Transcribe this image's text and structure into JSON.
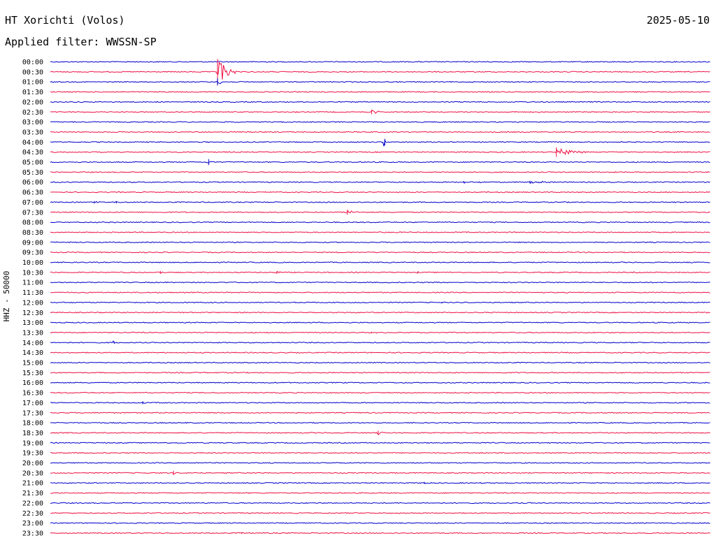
{
  "header": {
    "station": "HT Xorichti (Volos)",
    "date": "2025-05-10",
    "filter": "Applied filter: WWSSN-SP"
  },
  "chart_data": {
    "type": "line",
    "title": "HT Xorichti (Volos)",
    "subtitle": "Applied filter: WWSSN-SP",
    "ylabel": "HHZ - 50000",
    "xlabel": "",
    "grid": false,
    "trace_colors": [
      "#0000cc",
      "#ee1144"
    ],
    "row_labels": [
      "00:00",
      "00:30",
      "01:00",
      "01:30",
      "02:00",
      "02:30",
      "03:00",
      "03:30",
      "04:00",
      "04:30",
      "05:00",
      "05:30",
      "06:00",
      "06:30",
      "07:00",
      "07:30",
      "08:00",
      "08:30",
      "09:00",
      "09:30",
      "10:00",
      "10:30",
      "11:00",
      "11:30",
      "12:00",
      "12:30",
      "13:00",
      "13:30",
      "14:00",
      "14:30",
      "15:00",
      "15:30",
      "16:00",
      "16:30",
      "17:00",
      "17:30",
      "18:00",
      "18:30",
      "19:00",
      "19:30",
      "20:00",
      "20:30",
      "21:00",
      "21:30",
      "22:00",
      "22:30",
      "23:00",
      "23:30"
    ],
    "events": [
      {
        "row": "00:30",
        "minute": 7.6,
        "amplitude": 3.5,
        "duration_min": 1.0
      },
      {
        "row": "01:00",
        "minute": 7.6,
        "amplitude": 1.0,
        "duration_min": 0.3
      },
      {
        "row": "02:30",
        "minute": 14.6,
        "amplitude": 0.6,
        "duration_min": 0.6
      },
      {
        "row": "04:00",
        "minute": 15.2,
        "amplitude": 0.9,
        "duration_min": 0.1
      },
      {
        "row": "04:30",
        "minute": 23.0,
        "amplitude": 1.3,
        "duration_min": 1.5
      },
      {
        "row": "05:00",
        "minute": 7.2,
        "amplitude": 0.8,
        "duration_min": 0.3
      },
      {
        "row": "06:00",
        "minute": 18.8,
        "amplitude": 0.3,
        "duration_min": 1.3
      },
      {
        "row": "06:00",
        "minute": 21.8,
        "amplitude": 0.4,
        "duration_min": 1.3
      },
      {
        "row": "07:00",
        "minute": 2.0,
        "amplitude": 0.3,
        "duration_min": 0.3
      },
      {
        "row": "07:00",
        "minute": 3.0,
        "amplitude": 0.3,
        "duration_min": 0.3
      },
      {
        "row": "07:30",
        "minute": 13.5,
        "amplitude": 0.7,
        "duration_min": 0.8
      },
      {
        "row": "10:30",
        "minute": 5.0,
        "amplitude": 0.4,
        "duration_min": 0.3
      },
      {
        "row": "10:30",
        "minute": 10.3,
        "amplitude": 0.4,
        "duration_min": 0.4
      },
      {
        "row": "10:30",
        "minute": 16.7,
        "amplitude": 0.3,
        "duration_min": 0.2
      },
      {
        "row": "12:00",
        "minute": 17.8,
        "amplitude": 0.2,
        "duration_min": 0.4
      },
      {
        "row": "13:30",
        "minute": 14.6,
        "amplitude": 0.2,
        "duration_min": 0.5
      },
      {
        "row": "14:00",
        "minute": 2.9,
        "amplitude": 0.3,
        "duration_min": 0.1
      },
      {
        "row": "17:00",
        "minute": 4.2,
        "amplitude": 0.4,
        "duration_min": 0.3
      },
      {
        "row": "18:30",
        "minute": 14.9,
        "amplitude": 0.6,
        "duration_min": 0.3
      },
      {
        "row": "20:30",
        "minute": 5.6,
        "amplitude": 0.6,
        "duration_min": 0.1
      },
      {
        "row": "21:00",
        "minute": 17.0,
        "amplitude": 0.3,
        "duration_min": 0.4
      },
      {
        "row": "23:30",
        "minute": 8.7,
        "amplitude": 0.2,
        "duration_min": 0.8
      }
    ]
  }
}
